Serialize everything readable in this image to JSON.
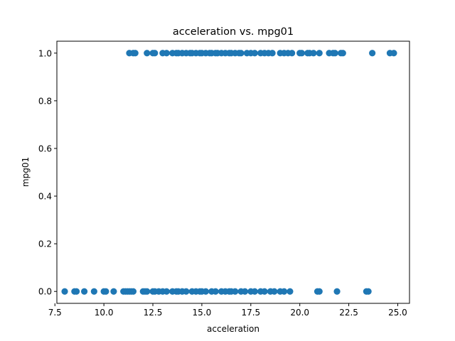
{
  "chart_data": {
    "type": "scatter",
    "title": "acceleration vs. mpg01",
    "xlabel": "acceleration",
    "ylabel": "mpg01",
    "xlim": [
      7.6,
      25.6
    ],
    "ylim": [
      -0.05,
      1.05
    ],
    "xticks": [
      "7.5",
      "10.0",
      "12.5",
      "15.0",
      "17.5",
      "20.0",
      "22.5",
      "25.0"
    ],
    "yticks": [
      "0.0",
      "0.2",
      "0.4",
      "0.6",
      "0.8",
      "1.0"
    ],
    "marker_color": "#1f77b4",
    "grid": false,
    "legend": "none",
    "series": [
      {
        "values": [
          {
            "x": 8.0,
            "y": 0
          },
          {
            "x": 8.5,
            "y": 0
          },
          {
            "x": 8.6,
            "y": 0
          },
          {
            "x": 9.0,
            "y": 0
          },
          {
            "x": 9.5,
            "y": 0
          },
          {
            "x": 10.0,
            "y": 0
          },
          {
            "x": 10.1,
            "y": 0
          },
          {
            "x": 10.5,
            "y": 0
          },
          {
            "x": 11.0,
            "y": 0
          },
          {
            "x": 11.1,
            "y": 0
          },
          {
            "x": 11.2,
            "y": 0
          },
          {
            "x": 11.3,
            "y": 0
          },
          {
            "x": 11.4,
            "y": 0
          },
          {
            "x": 11.5,
            "y": 0
          },
          {
            "x": 12.0,
            "y": 0
          },
          {
            "x": 12.1,
            "y": 0
          },
          {
            "x": 12.2,
            "y": 0
          },
          {
            "x": 12.5,
            "y": 0
          },
          {
            "x": 12.6,
            "y": 0
          },
          {
            "x": 12.8,
            "y": 0
          },
          {
            "x": 13.0,
            "y": 0
          },
          {
            "x": 13.2,
            "y": 0
          },
          {
            "x": 13.5,
            "y": 0
          },
          {
            "x": 13.7,
            "y": 0
          },
          {
            "x": 13.8,
            "y": 0
          },
          {
            "x": 14.0,
            "y": 0
          },
          {
            "x": 14.2,
            "y": 0
          },
          {
            "x": 14.5,
            "y": 0
          },
          {
            "x": 14.7,
            "y": 0
          },
          {
            "x": 14.9,
            "y": 0
          },
          {
            "x": 15.0,
            "y": 0
          },
          {
            "x": 15.2,
            "y": 0
          },
          {
            "x": 15.5,
            "y": 0
          },
          {
            "x": 15.7,
            "y": 0
          },
          {
            "x": 16.0,
            "y": 0
          },
          {
            "x": 16.2,
            "y": 0
          },
          {
            "x": 16.4,
            "y": 0
          },
          {
            "x": 16.5,
            "y": 0
          },
          {
            "x": 16.7,
            "y": 0
          },
          {
            "x": 17.0,
            "y": 0
          },
          {
            "x": 17.2,
            "y": 0
          },
          {
            "x": 17.5,
            "y": 0
          },
          {
            "x": 17.7,
            "y": 0
          },
          {
            "x": 18.0,
            "y": 0
          },
          {
            "x": 18.2,
            "y": 0
          },
          {
            "x": 18.5,
            "y": 0
          },
          {
            "x": 18.7,
            "y": 0
          },
          {
            "x": 19.0,
            "y": 0
          },
          {
            "x": 19.2,
            "y": 0
          },
          {
            "x": 19.5,
            "y": 0
          },
          {
            "x": 20.9,
            "y": 0
          },
          {
            "x": 21.0,
            "y": 0
          },
          {
            "x": 21.9,
            "y": 0
          },
          {
            "x": 23.4,
            "y": 0
          },
          {
            "x": 23.5,
            "y": 0
          },
          {
            "x": 11.3,
            "y": 1
          },
          {
            "x": 11.5,
            "y": 1
          },
          {
            "x": 11.6,
            "y": 1
          },
          {
            "x": 12.2,
            "y": 1
          },
          {
            "x": 12.5,
            "y": 1
          },
          {
            "x": 12.6,
            "y": 1
          },
          {
            "x": 13.0,
            "y": 1
          },
          {
            "x": 13.2,
            "y": 1
          },
          {
            "x": 13.5,
            "y": 1
          },
          {
            "x": 13.7,
            "y": 1
          },
          {
            "x": 13.8,
            "y": 1
          },
          {
            "x": 14.0,
            "y": 1
          },
          {
            "x": 14.2,
            "y": 1
          },
          {
            "x": 14.4,
            "y": 1
          },
          {
            "x": 14.5,
            "y": 1
          },
          {
            "x": 14.7,
            "y": 1
          },
          {
            "x": 14.9,
            "y": 1
          },
          {
            "x": 15.0,
            "y": 1
          },
          {
            "x": 15.2,
            "y": 1
          },
          {
            "x": 15.4,
            "y": 1
          },
          {
            "x": 15.5,
            "y": 1
          },
          {
            "x": 15.7,
            "y": 1
          },
          {
            "x": 15.8,
            "y": 1
          },
          {
            "x": 16.0,
            "y": 1
          },
          {
            "x": 16.2,
            "y": 1
          },
          {
            "x": 16.4,
            "y": 1
          },
          {
            "x": 16.5,
            "y": 1
          },
          {
            "x": 16.7,
            "y": 1
          },
          {
            "x": 16.9,
            "y": 1
          },
          {
            "x": 17.0,
            "y": 1
          },
          {
            "x": 17.3,
            "y": 1
          },
          {
            "x": 17.5,
            "y": 1
          },
          {
            "x": 17.7,
            "y": 1
          },
          {
            "x": 18.0,
            "y": 1
          },
          {
            "x": 18.2,
            "y": 1
          },
          {
            "x": 18.4,
            "y": 1
          },
          {
            "x": 18.6,
            "y": 1
          },
          {
            "x": 19.0,
            "y": 1
          },
          {
            "x": 19.2,
            "y": 1
          },
          {
            "x": 19.4,
            "y": 1
          },
          {
            "x": 19.6,
            "y": 1
          },
          {
            "x": 20.0,
            "y": 1
          },
          {
            "x": 20.1,
            "y": 1
          },
          {
            "x": 20.4,
            "y": 1
          },
          {
            "x": 20.5,
            "y": 1
          },
          {
            "x": 20.7,
            "y": 1
          },
          {
            "x": 21.0,
            "y": 1
          },
          {
            "x": 21.5,
            "y": 1
          },
          {
            "x": 21.7,
            "y": 1
          },
          {
            "x": 21.8,
            "y": 1
          },
          {
            "x": 22.1,
            "y": 1
          },
          {
            "x": 22.2,
            "y": 1
          },
          {
            "x": 23.7,
            "y": 1
          },
          {
            "x": 24.6,
            "y": 1
          },
          {
            "x": 24.8,
            "y": 1
          }
        ]
      }
    ]
  }
}
